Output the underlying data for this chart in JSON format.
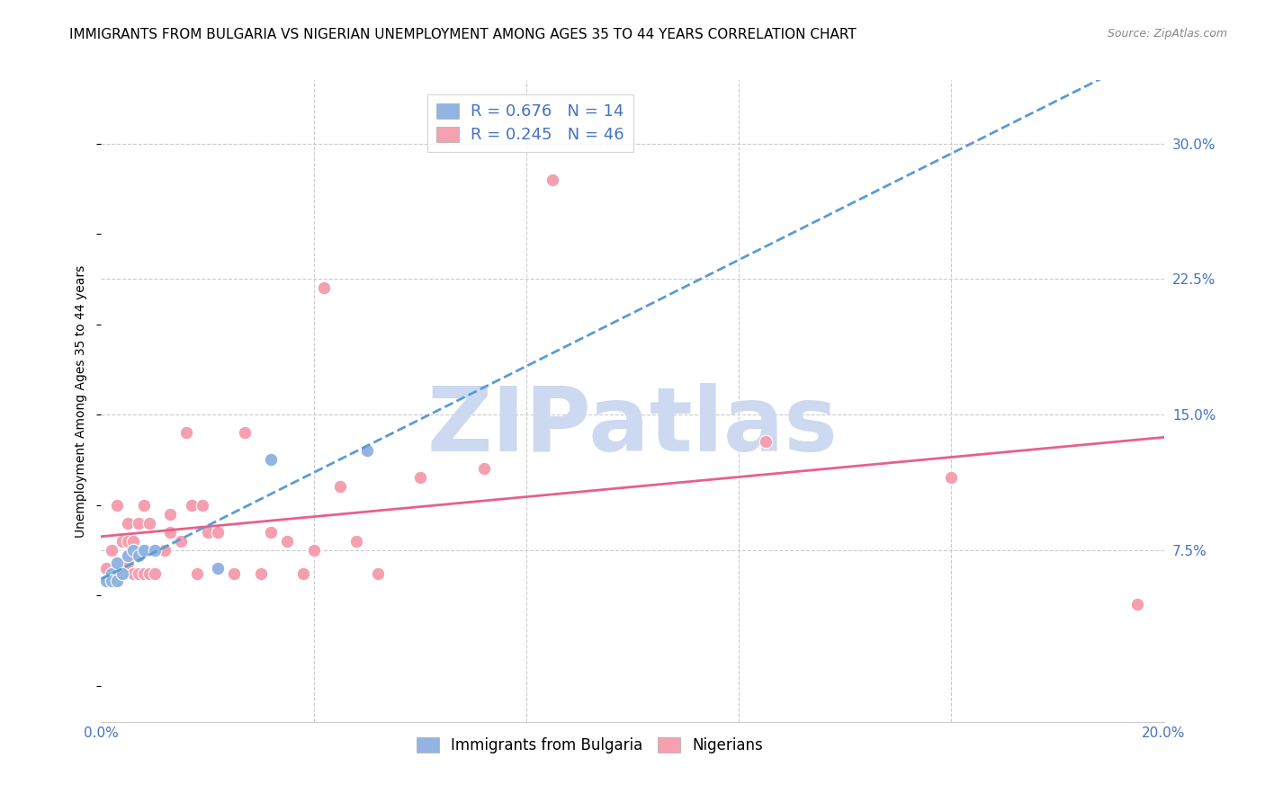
{
  "title": "IMMIGRANTS FROM BULGARIA VS NIGERIAN UNEMPLOYMENT AMONG AGES 35 TO 44 YEARS CORRELATION CHART",
  "source": "Source: ZipAtlas.com",
  "xlabel": "",
  "ylabel": "Unemployment Among Ages 35 to 44 years",
  "xlim": [
    0.0,
    0.2
  ],
  "ylim": [
    -0.02,
    0.335
  ],
  "xticks": [
    0.0,
    0.04,
    0.08,
    0.12,
    0.16,
    0.2
  ],
  "xticklabels": [
    "0.0%",
    "",
    "",
    "",
    "",
    "20.0%"
  ],
  "yticks_right": [
    0.075,
    0.15,
    0.225,
    0.3
  ],
  "ytick_right_labels": [
    "7.5%",
    "15.0%",
    "22.5%",
    "30.0%"
  ],
  "bulgaria_color": "#92b4e3",
  "nigeria_color": "#f4a0b0",
  "bulgaria_line_color": "#5b9bd5",
  "nigeria_line_color": "#e8608a",
  "bulgaria_R": 0.676,
  "bulgaria_N": 14,
  "nigeria_R": 0.245,
  "nigeria_N": 46,
  "bulgaria_x": [
    0.001,
    0.002,
    0.002,
    0.003,
    0.003,
    0.004,
    0.005,
    0.006,
    0.007,
    0.008,
    0.01,
    0.022,
    0.032,
    0.05
  ],
  "bulgaria_y": [
    0.058,
    0.062,
    0.058,
    0.068,
    0.058,
    0.062,
    0.072,
    0.075,
    0.072,
    0.075,
    0.075,
    0.065,
    0.125,
    0.13
  ],
  "nigeria_x": [
    0.001,
    0.002,
    0.002,
    0.003,
    0.003,
    0.004,
    0.004,
    0.005,
    0.005,
    0.005,
    0.006,
    0.006,
    0.007,
    0.007,
    0.008,
    0.008,
    0.009,
    0.009,
    0.01,
    0.012,
    0.013,
    0.013,
    0.015,
    0.016,
    0.017,
    0.018,
    0.019,
    0.02,
    0.022,
    0.025,
    0.027,
    0.03,
    0.032,
    0.035,
    0.038,
    0.04,
    0.042,
    0.045,
    0.048,
    0.052,
    0.06,
    0.072,
    0.085,
    0.125,
    0.16,
    0.195
  ],
  "nigeria_y": [
    0.065,
    0.062,
    0.075,
    0.062,
    0.1,
    0.068,
    0.08,
    0.068,
    0.08,
    0.09,
    0.062,
    0.08,
    0.062,
    0.09,
    0.062,
    0.1,
    0.062,
    0.09,
    0.062,
    0.075,
    0.095,
    0.085,
    0.08,
    0.14,
    0.1,
    0.062,
    0.1,
    0.085,
    0.085,
    0.062,
    0.14,
    0.062,
    0.085,
    0.08,
    0.062,
    0.075,
    0.22,
    0.11,
    0.08,
    0.062,
    0.115,
    0.12,
    0.28,
    0.135,
    0.115,
    0.045
  ],
  "watermark_zip": "ZIP",
  "watermark_atlas": "atlas",
  "watermark_color": "#ccd9f0",
  "grid_color": "#cccccc",
  "title_fontsize": 11,
  "axis_label_fontsize": 10,
  "tick_fontsize": 11,
  "legend_fontsize": 12
}
